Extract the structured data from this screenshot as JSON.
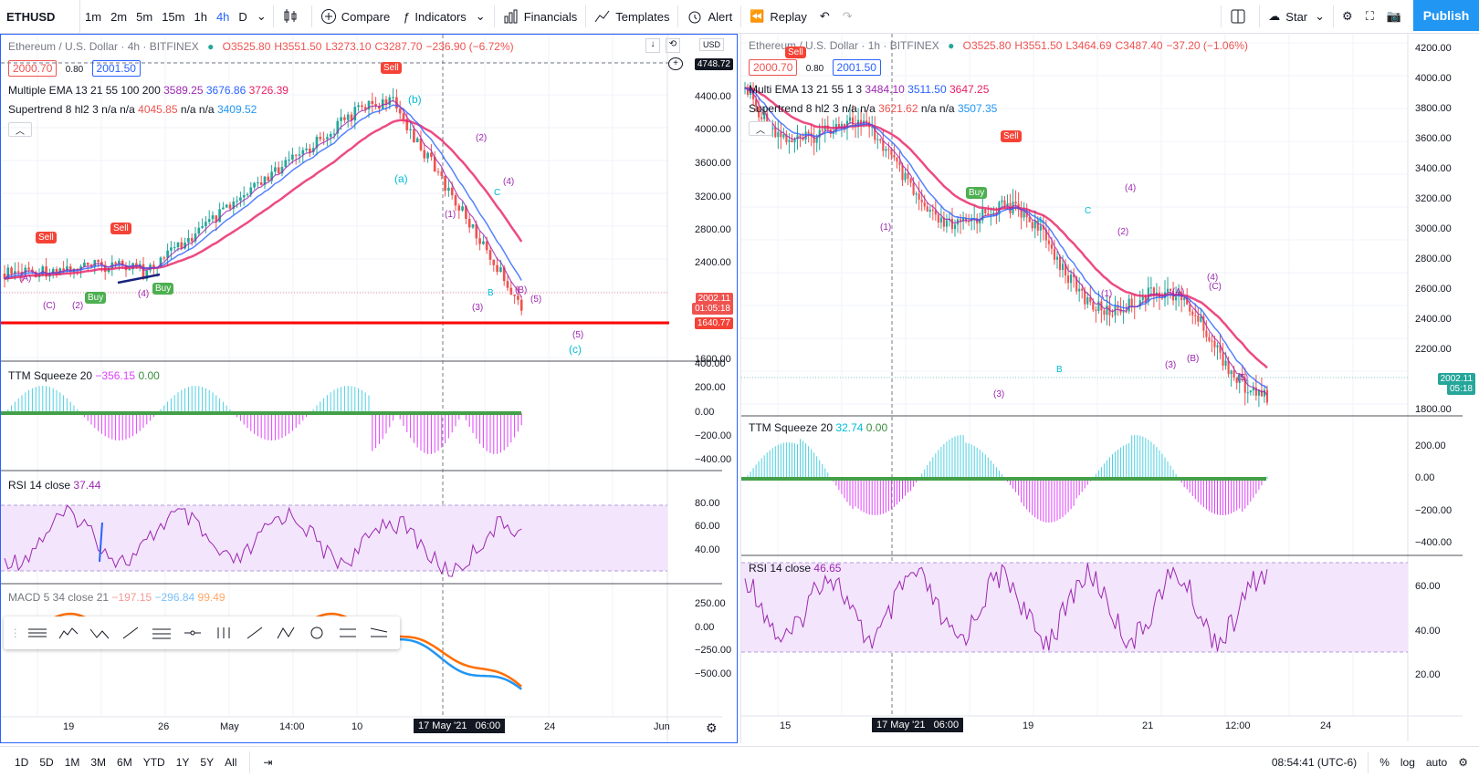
{
  "topbar": {
    "symbol": "ETHUSD",
    "timeframes": [
      "1m",
      "2m",
      "5m",
      "15m",
      "1h",
      "4h",
      "D"
    ],
    "active_timeframe": "4h",
    "compare": "Compare",
    "indicators": "Indicators",
    "financials": "Financials",
    "templates": "Templates",
    "alert": "Alert",
    "replay": "Replay",
    "layout_name": "Star",
    "publish": "Publish"
  },
  "left_chart": {
    "title": "Ethereum / U.S. Dollar · 4h · BITFINEX",
    "ohlc": {
      "o": "O3525.80",
      "h": "H3551.50",
      "l": "L3273.10",
      "c": "C3287.70",
      "chg": "−236.90 (−6.72%)"
    },
    "sell_price": "2000.70",
    "spread": "0.80",
    "buy_price": "2001.50",
    "ema_label": "Multiple EMA 13 21 55 100 200",
    "ema_values": [
      "3589.25",
      "3676.86",
      "3726.39"
    ],
    "supertrend_label": "Supertrend 8 hl2 3",
    "supertrend_values": [
      "n/a",
      "n/a",
      "4045.85",
      "n/a",
      "n/a",
      "3409.52"
    ],
    "currency": "USD",
    "price_axis": [
      "4400.00",
      "4000.00",
      "3600.00",
      "3200.00",
      "2800.00",
      "2400.00",
      "1600.00"
    ],
    "top_tag": "4748.72",
    "last_price": "2002.11",
    "countdown": "01:05:18",
    "line_price": "1640.77",
    "ttm_label": "TTM Squeeze 20",
    "ttm_values": [
      "−356.15",
      "0.00"
    ],
    "ttm_axis": [
      "400.00",
      "200.00",
      "0.00",
      "−200.00",
      "−400.00"
    ],
    "rsi_label": "RSI 14 close",
    "rsi_value": "37.44",
    "rsi_axis": [
      "80.00",
      "60.00",
      "40.00"
    ],
    "macd_label": "MACD 5 34 close 21",
    "macd_values": [
      "−197.15",
      "−296.84",
      "99.49"
    ],
    "macd_axis": [
      "250.00",
      "0.00",
      "−250.00",
      "−500.00"
    ],
    "time_axis": [
      "19",
      "26",
      "May",
      "14:00",
      "10",
      "24",
      "Jun"
    ],
    "crosshair_time": "17 May '21",
    "crosshair_clock": "06:00",
    "waves": [
      "(a)",
      "(b)",
      "(c)",
      "(1)",
      "(2)",
      "(3)",
      "(4)",
      "(5)",
      "(A)",
      "(B)",
      "(C)",
      "A",
      "B",
      "C"
    ],
    "signals": {
      "sell": "Sell",
      "buy": "Buy"
    }
  },
  "right_chart": {
    "title": "Ethereum / U.S. Dollar · 1h · BITFINEX",
    "ohlc": {
      "o": "O3525.80",
      "h": "H3551.50",
      "l": "L3464.69",
      "c": "C3487.40",
      "chg": "−37.20 (−1.06%)"
    },
    "sell_price": "2000.70",
    "spread": "0.80",
    "buy_price": "2001.50",
    "ema_label": "Multi EMA 13 21 55 1 3",
    "ema_values": [
      "3484.10",
      "3511.50",
      "3647.25"
    ],
    "supertrend_label": "Supertrend 8 hl2 3",
    "supertrend_values": [
      "n/a",
      "n/a",
      "3621.62",
      "n/a",
      "n/a",
      "3507.35"
    ],
    "price_axis": [
      "4200.00",
      "4000.00",
      "3800.00",
      "3600.00",
      "3400.00",
      "3200.00",
      "3000.00",
      "2800.00",
      "2600.00",
      "2400.00",
      "2200.00",
      "1800.00"
    ],
    "last_price": "2002.11",
    "countdown": "05:18",
    "ttm_label": "TTM Squeeze 20",
    "ttm_values": [
      "32.74",
      "0.00"
    ],
    "ttm_axis": [
      "200.00",
      "0.00",
      "−200.00",
      "−400.00"
    ],
    "rsi_label": "RSI 14 close",
    "rsi_value": "46.65",
    "rsi_axis": [
      "60.00",
      "40.00",
      "20.00"
    ],
    "time_axis": [
      "15",
      "19",
      "21",
      "12:00",
      "24"
    ],
    "crosshair_time": "17 May '21",
    "crosshair_clock": "06:00"
  },
  "bottombar": {
    "ranges": [
      "1D",
      "5D",
      "1M",
      "3M",
      "6M",
      "YTD",
      "1Y",
      "5Y",
      "All"
    ],
    "clock": "08:54:41 (UTC-6)",
    "percent": "%",
    "log": "log",
    "auto": "auto"
  },
  "colors": {
    "accent": "#2962ff",
    "bull": "#26a69a",
    "bear": "#ef5350",
    "publish": "#2196f3",
    "rsi_band": "#f3e5fc",
    "ema_pink": "#e91e63",
    "ttm_cyan": "#4dd0e1",
    "ttm_magenta": "#e040fb"
  }
}
